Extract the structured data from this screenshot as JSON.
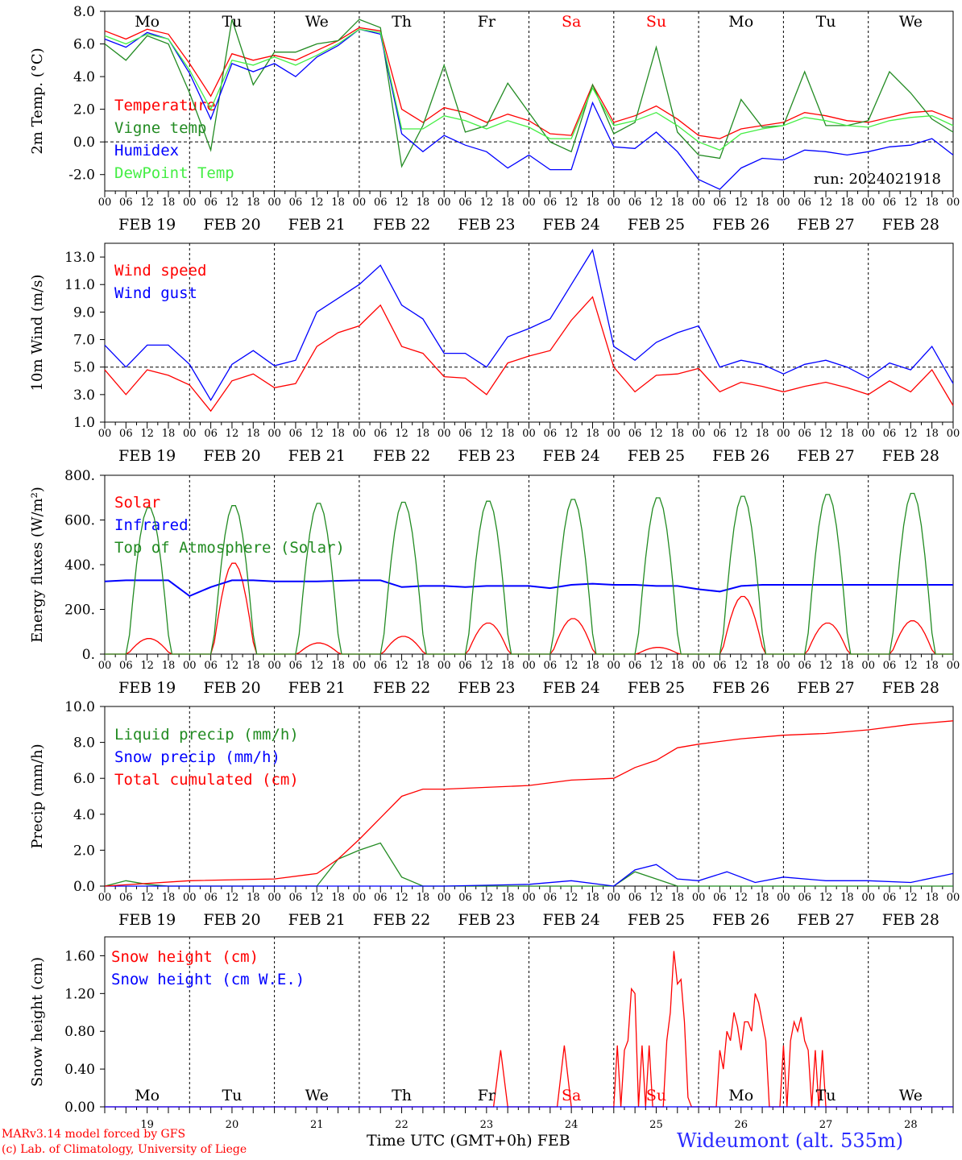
{
  "colors": {
    "red": "#ff0000",
    "blue": "#0000ff",
    "green": "#228b22",
    "lightgreen": "#44ee44",
    "black": "#000000"
  },
  "x_ticks": [
    "00",
    "06",
    "12",
    "18"
  ],
  "dates": [
    "FEB 19",
    "FEB 20",
    "FEB 21",
    "FEB 22",
    "FEB 23",
    "FEB 24",
    "FEB 25",
    "FEB 26",
    "FEB 27",
    "FEB 28"
  ],
  "weekdays": [
    {
      "label": "Mo",
      "color": "#000000"
    },
    {
      "label": "Tu",
      "color": "#000000"
    },
    {
      "label": "We",
      "color": "#000000"
    },
    {
      "label": "Th",
      "color": "#000000"
    },
    {
      "label": "Fr",
      "color": "#000000"
    },
    {
      "label": "Sa",
      "color": "#ff0000"
    },
    {
      "label": "Su",
      "color": "#ff0000"
    },
    {
      "label": "Mo",
      "color": "#000000"
    },
    {
      "label": "Tu",
      "color": "#000000"
    },
    {
      "label": "We",
      "color": "#000000"
    }
  ],
  "day_numbers": [
    "19",
    "20",
    "21",
    "22",
    "23",
    "24",
    "25",
    "26",
    "27",
    "28"
  ],
  "run_label": "run: 2024021918",
  "footer": {
    "model": "MARv3.14 model forced by GFS",
    "lab": "(c) Lab. of Climatology, University of Liege",
    "xlabel": "Time UTC (GMT+0h) FEB",
    "site": "Wideumont (alt. 535m)"
  },
  "chart_data": [
    {
      "type": "line",
      "ylabel": "2m Temp. (°C)",
      "ylim": [
        -3.0,
        8.0
      ],
      "yticks": [
        "-2.0",
        "0.0",
        "2.0",
        "4.0",
        "6.0",
        "8.0"
      ],
      "hline": 0.0,
      "x_unit": "hours since FEB 19 00 UTC",
      "series": [
        {
          "name": "Temperature",
          "color": "#ff0000",
          "x": [
            0,
            6,
            12,
            18,
            24,
            30,
            36,
            42,
            48,
            54,
            60,
            66,
            72,
            78,
            84,
            90,
            96,
            102,
            108,
            114,
            120,
            126,
            132,
            138,
            144,
            150,
            156,
            162,
            168,
            174,
            180,
            186,
            192,
            198,
            204,
            210,
            216,
            222,
            228,
            234,
            240
          ],
          "y": [
            6.8,
            6.3,
            6.9,
            6.6,
            4.8,
            2.8,
            5.4,
            5.0,
            5.3,
            5.0,
            5.6,
            6.2,
            7.0,
            6.8,
            2.0,
            1.2,
            2.1,
            1.8,
            1.2,
            1.7,
            1.3,
            0.5,
            0.4,
            3.5,
            1.2,
            1.6,
            2.2,
            1.4,
            0.4,
            0.2,
            0.8,
            1.0,
            1.2,
            1.8,
            1.6,
            1.3,
            1.2,
            1.5,
            1.8,
            1.9,
            1.4
          ]
        },
        {
          "name": "Vigne temp",
          "color": "#228b22",
          "x": [
            0,
            6,
            12,
            18,
            24,
            30,
            36,
            42,
            48,
            54,
            60,
            66,
            72,
            78,
            84,
            90,
            96,
            102,
            108,
            114,
            120,
            126,
            132,
            138,
            144,
            150,
            156,
            162,
            168,
            174,
            180,
            186,
            192,
            198,
            204,
            210,
            216,
            222,
            228,
            234,
            240
          ],
          "y": [
            6.0,
            5.0,
            6.5,
            6.0,
            3.0,
            -0.5,
            7.5,
            3.5,
            5.5,
            5.5,
            6.0,
            6.2,
            7.5,
            7.0,
            -1.5,
            1.0,
            4.7,
            0.6,
            1.0,
            3.6,
            1.8,
            0.0,
            -0.6,
            3.5,
            0.5,
            1.2,
            5.8,
            0.6,
            -0.8,
            -1.0,
            2.6,
            0.9,
            1.0,
            4.3,
            1.0,
            1.0,
            1.3,
            4.3,
            3.0,
            1.4,
            0.6
          ]
        },
        {
          "name": "Humidex",
          "color": "#0000ff",
          "x": [
            0,
            6,
            12,
            18,
            24,
            30,
            36,
            42,
            48,
            54,
            60,
            66,
            72,
            78,
            84,
            90,
            96,
            102,
            108,
            114,
            120,
            126,
            132,
            138,
            144,
            150,
            156,
            162,
            168,
            174,
            180,
            186,
            192,
            198,
            204,
            210,
            216,
            222,
            228,
            234,
            240
          ],
          "y": [
            6.3,
            5.8,
            6.7,
            6.3,
            4.2,
            1.4,
            4.8,
            4.3,
            4.8,
            4.0,
            5.2,
            5.9,
            6.9,
            6.6,
            0.5,
            -0.6,
            0.4,
            -0.2,
            -0.6,
            -1.6,
            -0.8,
            -1.7,
            -1.7,
            2.4,
            -0.3,
            -0.4,
            0.6,
            -0.6,
            -2.3,
            -2.9,
            -1.6,
            -1.0,
            -1.1,
            -0.5,
            -0.6,
            -0.8,
            -0.6,
            -0.3,
            -0.2,
            0.2,
            -0.8
          ]
        },
        {
          "name": "DewPoint Temp",
          "color": "#44ee44",
          "x": [
            0,
            6,
            12,
            18,
            24,
            30,
            36,
            42,
            48,
            54,
            60,
            66,
            72,
            78,
            84,
            90,
            96,
            102,
            108,
            114,
            120,
            126,
            132,
            138,
            144,
            150,
            156,
            162,
            168,
            174,
            180,
            186,
            192,
            198,
            204,
            210,
            216,
            222,
            228,
            234,
            240
          ],
          "y": [
            6.5,
            6.0,
            6.6,
            6.3,
            4.4,
            2.0,
            5.0,
            4.7,
            5.2,
            4.7,
            5.3,
            6.0,
            6.9,
            6.7,
            0.8,
            0.8,
            1.6,
            1.3,
            0.8,
            1.3,
            0.9,
            0.2,
            0.2,
            3.3,
            1.0,
            1.3,
            1.8,
            1.0,
            0.0,
            -0.5,
            0.5,
            0.8,
            1.0,
            1.5,
            1.3,
            1.0,
            0.9,
            1.3,
            1.5,
            1.6,
            1.0
          ]
        }
      ]
    },
    {
      "type": "line",
      "ylabel": "10m Wind (m/s)",
      "ylim": [
        1.0,
        14.0
      ],
      "yticks": [
        "1.0",
        "3.0",
        "5.0",
        "7.0",
        "9.0",
        "11.0",
        "13.0"
      ],
      "hline": 5.0,
      "x_unit": "hours since FEB 19 00 UTC",
      "series": [
        {
          "name": "Wind speed",
          "color": "#ff0000",
          "x": [
            0,
            6,
            12,
            18,
            24,
            30,
            36,
            42,
            48,
            54,
            60,
            66,
            72,
            78,
            84,
            90,
            96,
            102,
            108,
            114,
            120,
            126,
            132,
            138,
            144,
            150,
            156,
            162,
            168,
            174,
            180,
            186,
            192,
            198,
            204,
            210,
            216,
            222,
            228,
            234,
            240
          ],
          "y": [
            4.8,
            3.0,
            4.8,
            4.4,
            3.7,
            1.8,
            4.0,
            4.5,
            3.5,
            3.8,
            6.5,
            7.5,
            8.0,
            9.5,
            6.5,
            6.0,
            4.3,
            4.2,
            3.0,
            5.3,
            5.8,
            6.2,
            8.4,
            10.1,
            5.0,
            3.2,
            4.4,
            4.5,
            4.9,
            3.2,
            3.9,
            3.6,
            3.2,
            3.6,
            3.9,
            3.5,
            3.0,
            4.0,
            3.2,
            4.8,
            2.2
          ]
        },
        {
          "name": "Wind gust",
          "color": "#0000ff",
          "x": [
            0,
            6,
            12,
            18,
            24,
            30,
            36,
            42,
            48,
            54,
            60,
            66,
            72,
            78,
            84,
            90,
            96,
            102,
            108,
            114,
            120,
            126,
            132,
            138,
            144,
            150,
            156,
            162,
            168,
            174,
            180,
            186,
            192,
            198,
            204,
            210,
            216,
            222,
            228,
            234,
            240
          ],
          "y": [
            6.6,
            5.0,
            6.6,
            6.6,
            5.2,
            2.6,
            5.2,
            6.2,
            5.1,
            5.5,
            9.0,
            10.0,
            11.0,
            12.4,
            9.5,
            8.5,
            6.0,
            6.0,
            5.0,
            7.2,
            7.8,
            8.5,
            11.0,
            13.5,
            6.5,
            5.5,
            6.8,
            7.5,
            8.0,
            5.0,
            5.5,
            5.2,
            4.5,
            5.2,
            5.5,
            5.0,
            4.2,
            5.3,
            4.8,
            6.5,
            3.8
          ]
        }
      ]
    },
    {
      "type": "line",
      "ylabel": "Energy fluxes (W/m²)",
      "ylim": [
        0,
        800
      ],
      "yticks": [
        "0.",
        "200.",
        "400.",
        "600.",
        "800."
      ],
      "x_unit": "hours since FEB 19 00 UTC",
      "series": [
        {
          "name": "Solar",
          "color": "#ff0000",
          "peaks": [
            70,
            410,
            50,
            80,
            140,
            160,
            30,
            260,
            140,
            150
          ]
        },
        {
          "name": "Infrared",
          "color": "#0000ff",
          "x": [
            0,
            6,
            12,
            18,
            24,
            30,
            36,
            42,
            48,
            54,
            60,
            66,
            72,
            78,
            84,
            90,
            96,
            102,
            108,
            114,
            120,
            126,
            132,
            138,
            144,
            150,
            156,
            162,
            168,
            174,
            180,
            186,
            192,
            198,
            204,
            210,
            216,
            222,
            228,
            234,
            240
          ],
          "y": [
            325,
            330,
            330,
            330,
            260,
            300,
            330,
            330,
            325,
            325,
            325,
            328,
            330,
            330,
            300,
            305,
            305,
            300,
            305,
            305,
            305,
            295,
            310,
            315,
            310,
            310,
            305,
            305,
            290,
            280,
            305,
            310,
            310,
            310,
            310,
            310,
            310,
            310,
            310,
            310,
            310
          ]
        },
        {
          "name": "Top of Atmosphere (Solar)",
          "color": "#228b22",
          "peaks": [
            660,
            670,
            680,
            685,
            690,
            698,
            705,
            712,
            720,
            725
          ]
        }
      ]
    },
    {
      "type": "line",
      "ylabel": "Precip (mm/h)",
      "ylim": [
        0,
        10
      ],
      "yticks": [
        "0.0",
        "2.0",
        "4.0",
        "6.0",
        "8.0",
        "10.0"
      ],
      "x_unit": "hours since FEB 19 00 UTC",
      "series": [
        {
          "name": "Liquid precip (mm/h)",
          "color": "#228b22",
          "x": [
            0,
            6,
            12,
            18,
            24,
            60,
            66,
            72,
            78,
            84,
            90,
            96,
            120,
            144,
            150,
            156,
            162,
            240
          ],
          "y": [
            0,
            0.3,
            0.1,
            0,
            0,
            0,
            1.5,
            2.0,
            2.4,
            0.5,
            0,
            0,
            0,
            0,
            0.8,
            0.4,
            0,
            0
          ]
        },
        {
          "name": "Snow precip (mm/h)",
          "color": "#0000ff",
          "x": [
            0,
            24,
            48,
            72,
            96,
            120,
            132,
            144,
            150,
            156,
            162,
            168,
            176,
            184,
            192,
            204,
            216,
            228,
            240
          ],
          "y": [
            0,
            0,
            0,
            0,
            0,
            0.1,
            0.3,
            0,
            0.9,
            1.2,
            0.4,
            0.3,
            0.8,
            0.2,
            0.5,
            0.3,
            0.3,
            0.2,
            0.7
          ]
        },
        {
          "name": "Total cumulated (cm)",
          "color": "#ff0000",
          "x": [
            0,
            24,
            48,
            60,
            66,
            72,
            78,
            84,
            90,
            96,
            108,
            120,
            132,
            144,
            150,
            156,
            162,
            168,
            180,
            192,
            204,
            216,
            228,
            240
          ],
          "y": [
            0,
            0.3,
            0.4,
            0.7,
            1.5,
            2.6,
            3.8,
            5.0,
            5.4,
            5.4,
            5.5,
            5.6,
            5.9,
            6.0,
            6.6,
            7.0,
            7.7,
            7.9,
            8.2,
            8.4,
            8.5,
            8.7,
            9.0,
            9.2
          ]
        }
      ]
    },
    {
      "type": "line",
      "ylabel": "Snow height (cm)",
      "ylim": [
        0,
        1.8
      ],
      "yticks": [
        "0.00",
        "0.40",
        "0.80",
        "1.20",
        "1.60"
      ],
      "x_unit": "hours since FEB 19 00 UTC",
      "series": [
        {
          "name": "Snow height (cm)",
          "color": "#ff0000",
          "x": [
            0,
            110,
            112,
            114,
            128,
            130,
            132,
            144,
            145,
            146,
            147,
            148,
            149,
            150,
            151,
            152,
            153,
            154,
            155,
            156,
            157,
            158,
            159,
            160,
            161,
            162,
            163,
            164,
            165,
            166,
            167,
            168,
            169,
            170,
            171,
            172,
            173,
            174,
            175,
            176,
            177,
            178,
            179,
            180,
            181,
            182,
            183,
            184,
            185,
            186,
            187,
            188,
            189,
            190,
            191,
            192,
            193,
            194,
            195,
            196,
            197,
            198,
            199,
            200,
            201,
            202,
            203,
            204,
            205,
            206,
            207,
            208,
            209,
            210,
            211,
            212,
            213,
            214,
            215,
            216,
            217,
            218,
            219,
            220,
            221,
            222,
            223,
            224,
            225,
            226,
            227,
            228,
            240
          ],
          "y": [
            0,
            0,
            0.6,
            0,
            0,
            0.65,
            0,
            0,
            0.65,
            0,
            0.6,
            0.7,
            1.25,
            1.2,
            0,
            0.65,
            0,
            0.65,
            0,
            0,
            0,
            0,
            0.7,
            1.0,
            1.65,
            1.3,
            1.35,
            0.9,
            0.1,
            0,
            0,
            0,
            0,
            0,
            0,
            0,
            0,
            0.6,
            0.4,
            0.8,
            0.7,
            1.0,
            0.85,
            0.6,
            0.9,
            0.9,
            0.8,
            1.2,
            1.1,
            0.9,
            0.7,
            0,
            0,
            0,
            0,
            0.65,
            0,
            0.7,
            0.9,
            0.8,
            0.95,
            0.7,
            0.6,
            0,
            0.6,
            0,
            0.6,
            0,
            0,
            0,
            0,
            0,
            0,
            0,
            0,
            0,
            0,
            0,
            0,
            0,
            0,
            0,
            0,
            0,
            0,
            0,
            0,
            0,
            0,
            0,
            0,
            0,
            0
          ]
        },
        {
          "name": "Snow height (cm W.E.)",
          "color": "#0000ff",
          "x": [
            0,
            240
          ],
          "y": [
            0,
            0
          ]
        }
      ]
    }
  ]
}
